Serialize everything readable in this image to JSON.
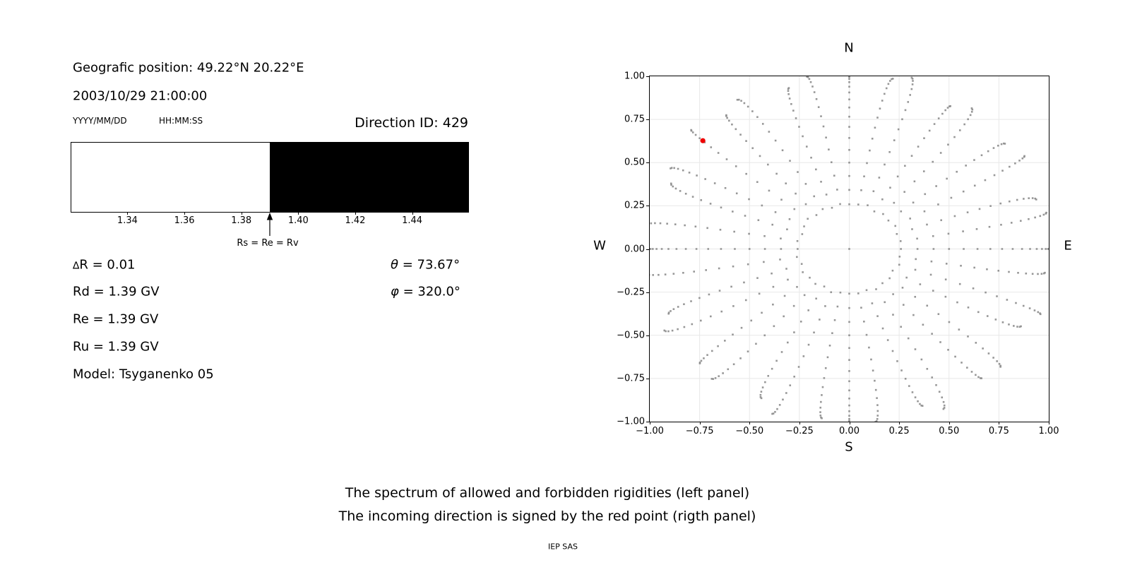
{
  "colors": {
    "red_point": "#ee0000",
    "dot_gray": "#8c8c8c",
    "grid": "#e8e8e8",
    "spine": "#000000",
    "allowed_white": "#ffffff",
    "forbidden_black": "#000000"
  },
  "left_panel": {
    "position_line": "Geografic position: 49.22°N 20.22°E",
    "datetime_line": "2003/10/29 21:00:00",
    "date_format_hint": "YYYY/MM/DD",
    "time_format_hint": "HH:MM:SS",
    "direction_id_label": "Direction ID: ",
    "direction_id_value": "429",
    "delta_symbol": "∆",
    "delta_rest": "R = 0.01",
    "params": [
      "Rd = 1.39 GV",
      "Re = 1.39 GV",
      "Ru = 1.39 GV"
    ],
    "model_line": "Model: Tsyganenko 05",
    "theta_symbol": "θ",
    "theta_rest": " = 73.67°",
    "phi_symbol": "φ",
    "phi_rest": " = 320.0°"
  },
  "captions": {
    "line1": "The spectrum of allowed and forbidden rigidities (left panel)",
    "line2": "The incoming direction is signed by the red point (rigth panel)",
    "credit": "IEP SAS"
  },
  "chart_data": [
    {
      "type": "area",
      "name": "rigidity-spectrum",
      "xlabel_units": "GV",
      "xlim": [
        1.3203,
        1.4597
      ],
      "xticks": [
        1.34,
        1.36,
        1.38,
        1.4,
        1.42,
        1.44
      ],
      "regions": [
        {
          "name": "allowed",
          "from": 1.3203,
          "to": 1.39,
          "color": "#ffffff"
        },
        {
          "name": "forbidden",
          "from": 1.39,
          "to": 1.4597,
          "color": "#000000"
        }
      ],
      "marker": {
        "x": 1.39,
        "label": "Rs = Re = Rv"
      }
    },
    {
      "type": "scatter",
      "name": "incoming-directions",
      "compass": {
        "top": "N",
        "bottom": "S",
        "left": "W",
        "right": "E"
      },
      "xlim": [
        -1,
        1
      ],
      "ylim": [
        -1,
        1
      ],
      "xticks": [
        -1.0,
        -0.75,
        -0.5,
        -0.25,
        0.0,
        0.25,
        0.5,
        0.75,
        1.0
      ],
      "yticks": [
        -1.0,
        -0.75,
        -0.5,
        -0.25,
        0.0,
        0.25,
        0.5,
        0.75,
        1.0
      ],
      "grid": true,
      "red_point": {
        "x": -0.734,
        "y": 0.627,
        "theta_deg": 73.67,
        "phi_deg": 320.0
      },
      "spokes": {
        "azimuth_start_deg": 0,
        "azimuth_step_deg": 10,
        "count": 36,
        "zenith_min_deg": 15,
        "zenith_max_deg": 90,
        "zenith_step_deg": 5,
        "radius": "sin(zenith)",
        "center_dot": true,
        "tip_scale": [
          1.0,
          1.01,
          0.98,
          1.03,
          0.99,
          1.02,
          0.97,
          1.04,
          1.01,
          1.0,
          1.02,
          0.98,
          1.03,
          0.99,
          1.05,
          1.01,
          0.97,
          1.02,
          1.0,
          1.03,
          0.98,
          1.04,
          1.0,
          1.02,
          0.97,
          1.03,
          0.99,
          1.0,
          1.01,
          0.98,
          1.04,
          1.0,
          1.02,
          0.97,
          1.03,
          0.99
        ],
        "tip_bend_deg": [
          0,
          2,
          -3,
          1.5,
          -2,
          3,
          -1.5,
          2.5,
          -2.5,
          0,
          2,
          -2,
          3,
          -1.5,
          -1,
          2.5,
          -3,
          2,
          0,
          -2,
          2.5,
          -3,
          1.5,
          -2.5,
          3,
          -2,
          2,
          0,
          -2.5,
          2,
          -3,
          1.5,
          -2,
          2.5,
          -1.5,
          2
        ]
      }
    }
  ]
}
